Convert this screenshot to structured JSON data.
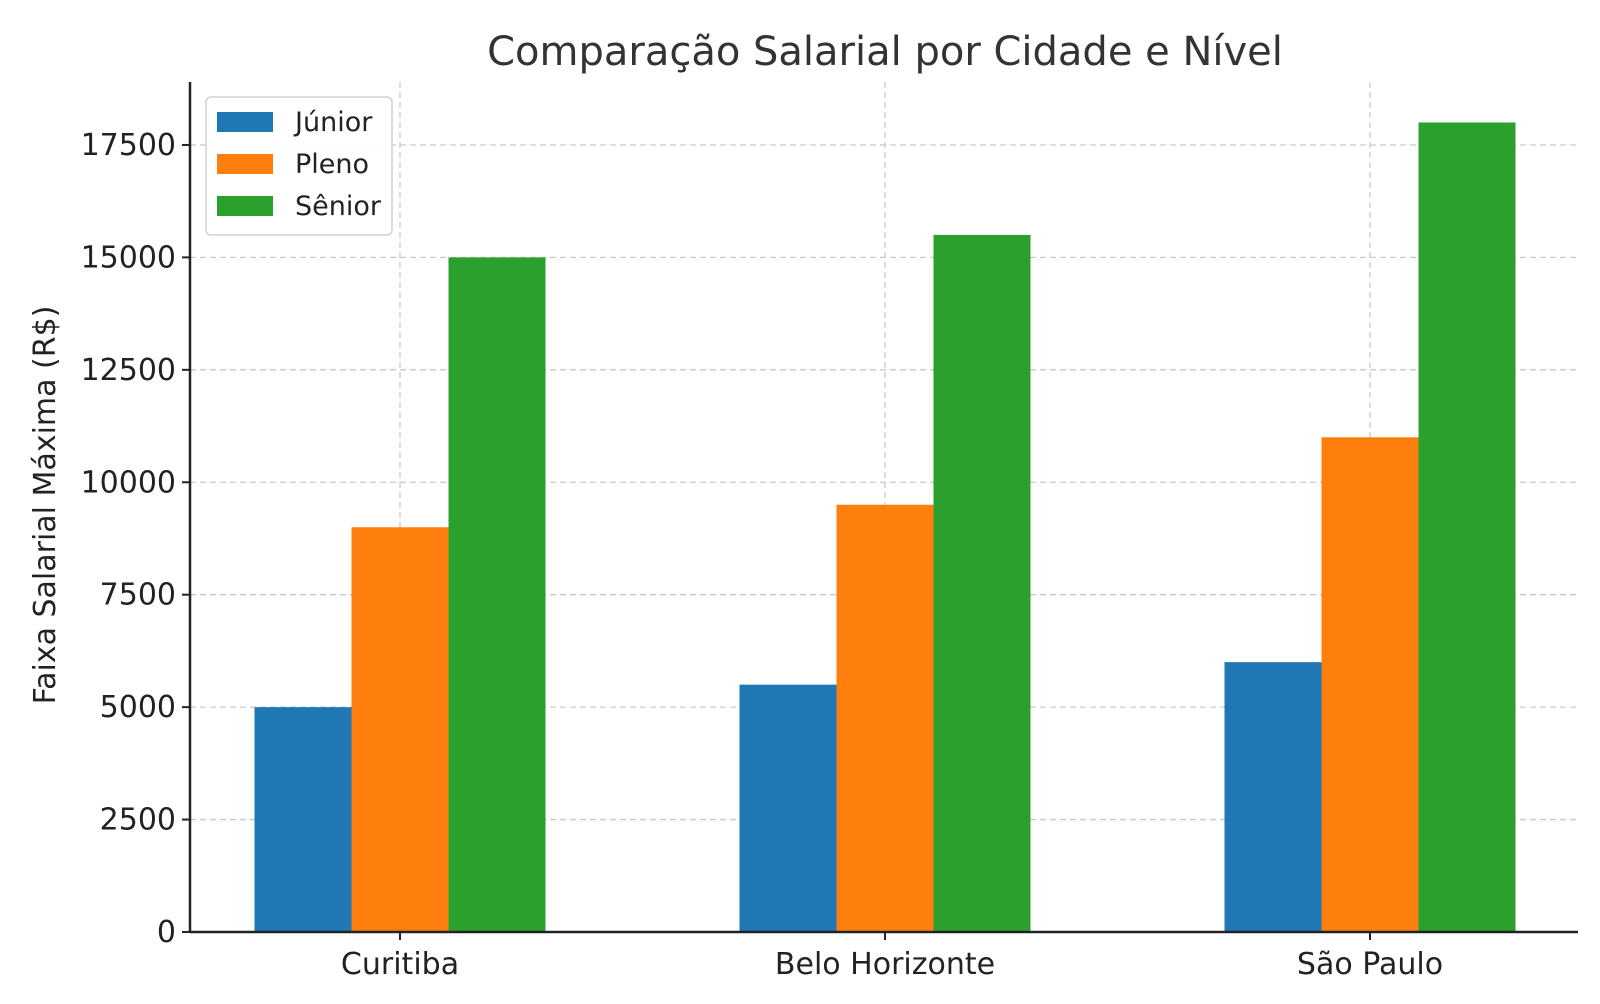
{
  "chart_data": {
    "type": "bar",
    "title": "Comparação Salarial por Cidade e Nível",
    "xlabel": "",
    "ylabel": "Faixa Salarial Máxima (R$)",
    "categories": [
      "Curitiba",
      "Belo Horizonte",
      "São Paulo"
    ],
    "series": [
      {
        "name": "Júnior",
        "values": [
          5000,
          5500,
          6000
        ],
        "color": "#1f77b4"
      },
      {
        "name": "Pleno",
        "values": [
          9000,
          9500,
          11000
        ],
        "color": "#ff7f0e"
      },
      {
        "name": "Sênior",
        "values": [
          15000,
          15500,
          18000
        ],
        "color": "#2ca02c"
      }
    ],
    "ylim": [
      0,
      18900
    ],
    "yticks": [
      0,
      2500,
      5000,
      7500,
      10000,
      12500,
      15000,
      17500
    ],
    "grid": true,
    "legend_position": "top-left"
  }
}
